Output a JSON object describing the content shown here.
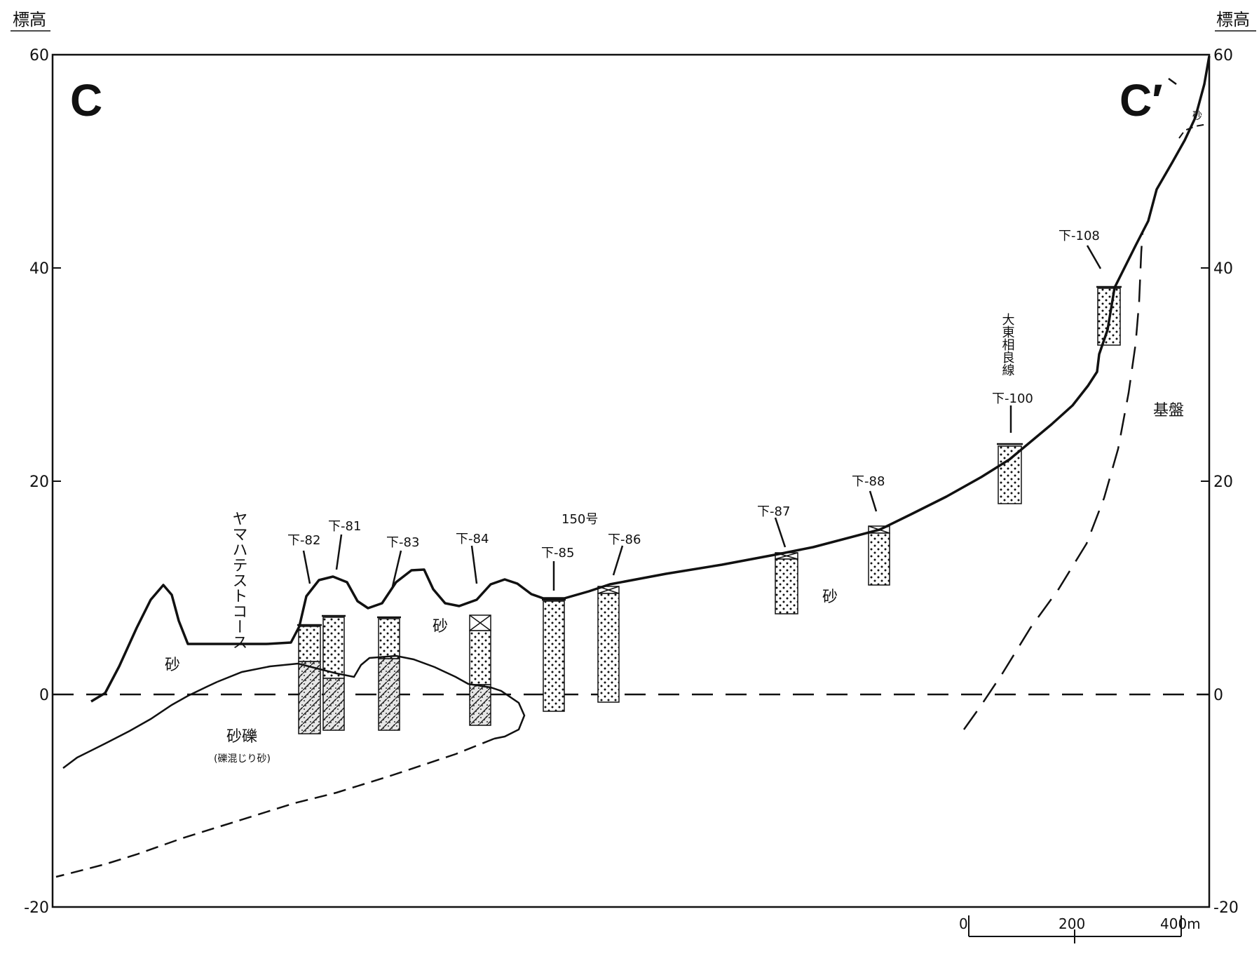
{
  "figure": {
    "axis_title_left": "標高",
    "axis_title_right": "標高",
    "section_start": "C",
    "section_end": "C′",
    "y_ticks": [
      "60",
      "40",
      "20",
      "0",
      "-20"
    ],
    "scale_bar": {
      "labels": [
        "0",
        "200",
        "400m"
      ]
    },
    "annotations": {
      "test_course": "ヤマハテストコース",
      "route_150": "150号",
      "daito_line": "大東相良線",
      "sand_left": "砂",
      "sand_mid": "砂",
      "sand_right": "砂",
      "sand_top_right": "砂",
      "gravel": "砂礫",
      "gravel_note": "(礫混じり砂)",
      "basement": "基盤"
    },
    "boreholes": [
      {
        "label": "下-82"
      },
      {
        "label": "下-81"
      },
      {
        "label": "下-83"
      },
      {
        "label": "下-84"
      },
      {
        "label": "下-85"
      },
      {
        "label": "下-86"
      },
      {
        "label": "下-87"
      },
      {
        "label": "下-88"
      },
      {
        "label": "下-100"
      },
      {
        "label": "下-108"
      }
    ]
  }
}
